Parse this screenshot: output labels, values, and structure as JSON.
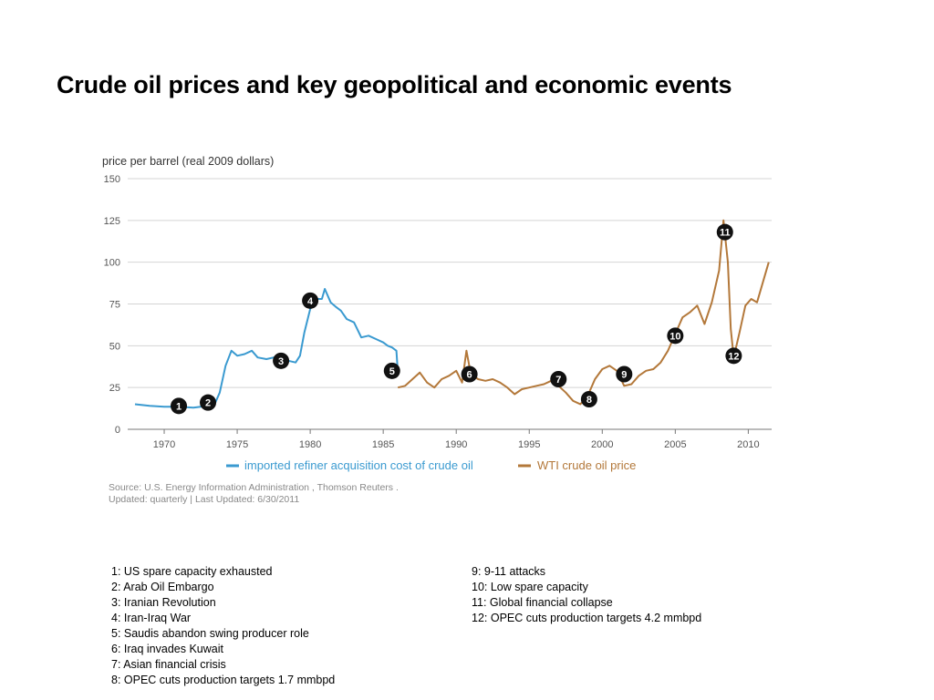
{
  "title": "Crude oil prices and key geopolitical and economic events",
  "unit_label": "price per barrel (real 2009 dollars)",
  "source_line1": "Source: U.S. Energy Information Administration , Thomson Reuters .",
  "source_line2": "Updated: quarterly | Last Updated: 6/30/2011",
  "colors": {
    "imported": "#3a9ad0",
    "wti": "#b3783a",
    "grid": "#d4d4d4",
    "marker": "#111111"
  },
  "events_left": [
    "1: US spare capacity exhausted",
    "2: Arab Oil Embargo",
    "3: Iranian Revolution",
    "4: Iran-Iraq War",
    "5: Saudis abandon swing producer role",
    "6: Iraq invades Kuwait",
    "7: Asian financial crisis",
    "8: OPEC cuts production targets 1.7 mmbpd"
  ],
  "events_right": [
    "9: 9-11 attacks",
    "10: Low spare capacity",
    "11: Global financial collapse",
    "12: OPEC cuts production targets 4.2 mmbpd"
  ],
  "chart_data": {
    "type": "line",
    "title": "",
    "xlabel": "",
    "ylabel": "price per barrel (real 2009 dollars)",
    "xlim": [
      1967.5,
      2011.6
    ],
    "ylim": [
      0,
      150
    ],
    "x_ticks": [
      1970,
      1975,
      1980,
      1985,
      1990,
      1995,
      2000,
      2005,
      2010
    ],
    "y_ticks": [
      0,
      25,
      50,
      75,
      100,
      125,
      150
    ],
    "grid": "horizontal",
    "legend": "bottom",
    "series": [
      {
        "name": "imported refiner acquisition cost of crude oil",
        "color": "#3a9ad0",
        "x": [
          1968,
          1969,
          1970,
          1971,
          1972,
          1973,
          1973.5,
          1973.8,
          1974.2,
          1974.6,
          1975,
          1975.5,
          1976,
          1976.4,
          1977,
          1977.5,
          1978,
          1978.5,
          1979,
          1979.3,
          1979.6,
          1980,
          1980.4,
          1980.8,
          1981,
          1981.4,
          1981.8,
          1982.1,
          1982.5,
          1983,
          1983.5,
          1984,
          1984.5,
          1985,
          1985.3,
          1985.6,
          1985.9,
          1986
        ],
        "y": [
          15,
          14,
          13.5,
          13.5,
          13,
          14,
          16,
          22,
          38,
          47,
          44,
          45,
          47,
          43,
          42,
          43,
          42,
          41,
          40,
          44,
          58,
          72,
          78,
          78,
          84,
          76,
          73,
          71,
          66,
          64,
          55,
          56,
          54,
          52,
          50,
          49,
          47,
          34
        ]
      },
      {
        "name": "WTI crude oil price",
        "color": "#b3783a",
        "x": [
          1986,
          1986.5,
          1987,
          1987.5,
          1988,
          1988.5,
          1989,
          1989.5,
          1990,
          1990.4,
          1990.7,
          1991,
          1991.5,
          1992,
          1992.5,
          1993,
          1993.5,
          1994,
          1994.5,
          1995,
          1995.5,
          1996,
          1996.5,
          1997,
          1997.5,
          1998,
          1998.5,
          1999,
          1999.5,
          2000,
          2000.5,
          2001,
          2001.5,
          2002,
          2002.5,
          2003,
          2003.5,
          2004,
          2004.5,
          2005,
          2005.5,
          2006,
          2006.5,
          2007,
          2007.5,
          2008,
          2008.3,
          2008.6,
          2008.8,
          2009,
          2009.4,
          2009.8,
          2010.2,
          2010.6,
          2011,
          2011.4
        ],
        "y": [
          25,
          26,
          30,
          34,
          28,
          25,
          30,
          32,
          35,
          28,
          47,
          33,
          30,
          29,
          30,
          28,
          25,
          21,
          24,
          25,
          26,
          27,
          29,
          26,
          22,
          17,
          15,
          20,
          30,
          36,
          38,
          35,
          26,
          27,
          32,
          35,
          36,
          40,
          47,
          57,
          67,
          70,
          74,
          63,
          76,
          95,
          125,
          100,
          60,
          43,
          58,
          74,
          78,
          76,
          88,
          100
        ]
      }
    ],
    "markers": [
      {
        "label": "1",
        "x": 1971,
        "y": 14
      },
      {
        "label": "2",
        "x": 1973,
        "y": 16
      },
      {
        "label": "3",
        "x": 1978,
        "y": 41
      },
      {
        "label": "4",
        "x": 1980,
        "y": 77
      },
      {
        "label": "5",
        "x": 1985.6,
        "y": 35
      },
      {
        "label": "6",
        "x": 1990.9,
        "y": 33
      },
      {
        "label": "7",
        "x": 1997.0,
        "y": 30
      },
      {
        "label": "8",
        "x": 1999.1,
        "y": 18
      },
      {
        "label": "9",
        "x": 2001.5,
        "y": 33
      },
      {
        "label": "10",
        "x": 2005.0,
        "y": 56
      },
      {
        "label": "11",
        "x": 2008.4,
        "y": 118
      },
      {
        "label": "12",
        "x": 2009.0,
        "y": 44
      }
    ]
  }
}
